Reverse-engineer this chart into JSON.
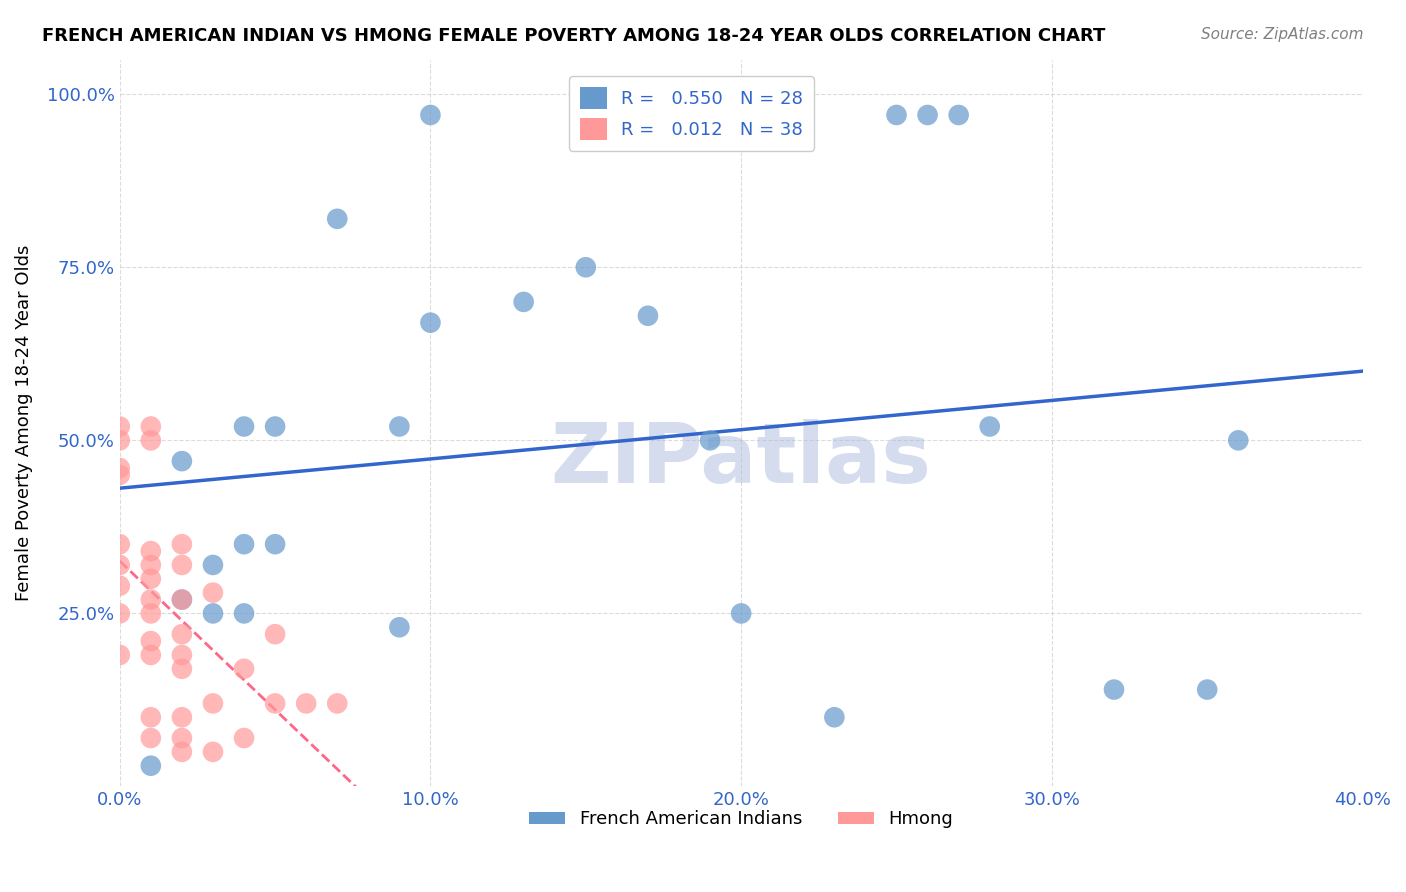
{
  "title": "FRENCH AMERICAN INDIAN VS HMONG FEMALE POVERTY AMONG 18-24 YEAR OLDS CORRELATION CHART",
  "source": "Source: ZipAtlas.com",
  "xlabel_bottom": "",
  "ylabel": "Female Poverty Among 18-24 Year Olds",
  "xlim": [
    0.0,
    0.4
  ],
  "ylim": [
    0.0,
    1.05
  ],
  "xticks": [
    0.0,
    0.1,
    0.2,
    0.3,
    0.4
  ],
  "xticklabels": [
    "0.0%",
    "10.0%",
    "20.0%",
    "30.0%",
    "40.0%"
  ],
  "yticks": [
    0.0,
    0.25,
    0.5,
    0.75,
    1.0
  ],
  "yticklabels": [
    "",
    "25.0%",
    "50.0%",
    "75.0%",
    "100.0%"
  ],
  "french_R": 0.55,
  "french_N": 28,
  "hmong_R": 0.012,
  "hmong_N": 38,
  "blue_color": "#6699CC",
  "pink_color": "#FF9999",
  "blue_line_color": "#3366CC",
  "pink_line_color": "#FF6688",
  "watermark": "ZIPatlas",
  "watermark_color": "#AABBDD",
  "french_x": [
    0.01,
    0.02,
    0.02,
    0.03,
    0.03,
    0.04,
    0.04,
    0.04,
    0.05,
    0.05,
    0.07,
    0.09,
    0.09,
    0.1,
    0.1,
    0.13,
    0.15,
    0.17,
    0.19,
    0.2,
    0.23,
    0.25,
    0.26,
    0.27,
    0.28,
    0.32,
    0.35,
    0.36
  ],
  "french_y": [
    0.03,
    0.27,
    0.47,
    0.25,
    0.32,
    0.25,
    0.35,
    0.52,
    0.35,
    0.52,
    0.82,
    0.23,
    0.52,
    0.67,
    0.97,
    0.7,
    0.75,
    0.68,
    0.5,
    0.25,
    0.1,
    0.97,
    0.97,
    0.97,
    0.52,
    0.14,
    0.14,
    0.5
  ],
  "hmong_x": [
    0.0,
    0.0,
    0.0,
    0.0,
    0.0,
    0.0,
    0.0,
    0.0,
    0.0,
    0.01,
    0.01,
    0.01,
    0.01,
    0.01,
    0.01,
    0.01,
    0.01,
    0.01,
    0.01,
    0.01,
    0.02,
    0.02,
    0.02,
    0.02,
    0.02,
    0.02,
    0.02,
    0.02,
    0.02,
    0.03,
    0.03,
    0.03,
    0.04,
    0.04,
    0.05,
    0.05,
    0.06,
    0.07
  ],
  "hmong_y": [
    0.19,
    0.25,
    0.29,
    0.32,
    0.35,
    0.45,
    0.46,
    0.5,
    0.52,
    0.07,
    0.1,
    0.19,
    0.21,
    0.25,
    0.27,
    0.3,
    0.32,
    0.34,
    0.5,
    0.52,
    0.05,
    0.07,
    0.1,
    0.17,
    0.19,
    0.22,
    0.27,
    0.32,
    0.35,
    0.05,
    0.12,
    0.28,
    0.07,
    0.17,
    0.12,
    0.22,
    0.12,
    0.12
  ]
}
